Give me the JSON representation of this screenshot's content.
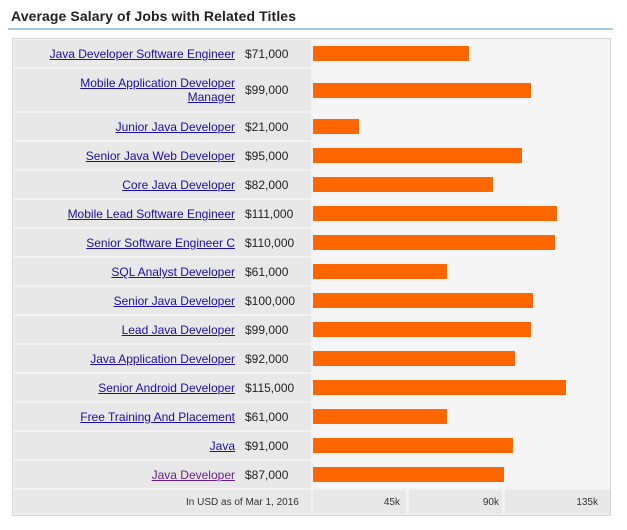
{
  "title": "Average Salary of Jobs with Related Titles",
  "footnote": "In USD as of Mar 1, 2016",
  "colors": {
    "bar": "#ff6600",
    "link": "#1a0dab",
    "visited": "#6a1f8f",
    "rule": "#a9c7e6"
  },
  "chart_data": {
    "type": "bar",
    "orientation": "horizontal",
    "categories": [
      "Java Developer Software Engineer",
      "Mobile Application Developer Manager",
      "Junior Java Developer",
      "Senior Java Web Developer",
      "Core Java Developer",
      "Mobile Lead Software Engineer",
      "Senior Software Engineer C",
      "SQL Analyst Developer",
      "Senior Java Developer",
      "Lead Java Developer",
      "Java Application Developer",
      "Senior Android Developer",
      "Free Training And Placement",
      "Java",
      "Java Developer"
    ],
    "value_labels": [
      "$71,000",
      "$99,000",
      "$21,000",
      "$95,000",
      "$82,000",
      "$111,000",
      "$110,000",
      "$61,000",
      "$100,000",
      "$99,000",
      "$92,000",
      "$115,000",
      "$61,000",
      "$91,000",
      "$87,000"
    ],
    "values": [
      71000,
      99000,
      21000,
      95000,
      82000,
      111000,
      110000,
      61000,
      100000,
      99000,
      92000,
      115000,
      61000,
      91000,
      87000
    ],
    "xlim": [
      0,
      135000
    ],
    "tick_values": [
      45000,
      90000,
      135000
    ],
    "tick_labels": [
      "45k",
      "90k",
      "135k"
    ],
    "grid": false,
    "title": "Average Salary of Jobs with Related Titles"
  }
}
